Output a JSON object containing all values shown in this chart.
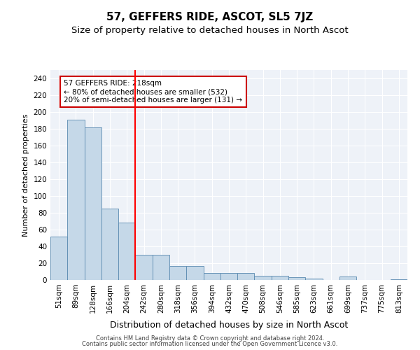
{
  "title": "57, GEFFERS RIDE, ASCOT, SL5 7JZ",
  "subtitle": "Size of property relative to detached houses in North Ascot",
  "xlabel": "Distribution of detached houses by size in North Ascot",
  "ylabel": "Number of detached properties",
  "categories": [
    "51sqm",
    "89sqm",
    "128sqm",
    "166sqm",
    "204sqm",
    "242sqm",
    "280sqm",
    "318sqm",
    "356sqm",
    "394sqm",
    "432sqm",
    "470sqm",
    "508sqm",
    "546sqm",
    "585sqm",
    "623sqm",
    "661sqm",
    "699sqm",
    "737sqm",
    "775sqm",
    "813sqm"
  ],
  "values": [
    52,
    191,
    182,
    85,
    68,
    30,
    30,
    17,
    17,
    8,
    8,
    8,
    5,
    5,
    3,
    2,
    0,
    4,
    0,
    0,
    1
  ],
  "bar_color": "#c5d8e8",
  "bar_edge_color": "#5a8ab0",
  "red_line_x": 4.5,
  "annotation_text": "57 GEFFERS RIDE: 218sqm\n← 80% of detached houses are smaller (532)\n20% of semi-detached houses are larger (131) →",
  "annotation_box_color": "#ffffff",
  "annotation_box_edge": "#cc0000",
  "ylim": [
    0,
    250
  ],
  "yticks": [
    0,
    20,
    40,
    60,
    80,
    100,
    120,
    140,
    160,
    180,
    200,
    220,
    240
  ],
  "bg_color": "#eef2f8",
  "footer_line1": "Contains HM Land Registry data © Crown copyright and database right 2024.",
  "footer_line2": "Contains public sector information licensed under the Open Government Licence v3.0.",
  "title_fontsize": 11,
  "subtitle_fontsize": 9.5,
  "xlabel_fontsize": 9,
  "ylabel_fontsize": 8,
  "tick_fontsize": 7.5,
  "annot_fontsize": 7.5,
  "footer_fontsize": 6
}
